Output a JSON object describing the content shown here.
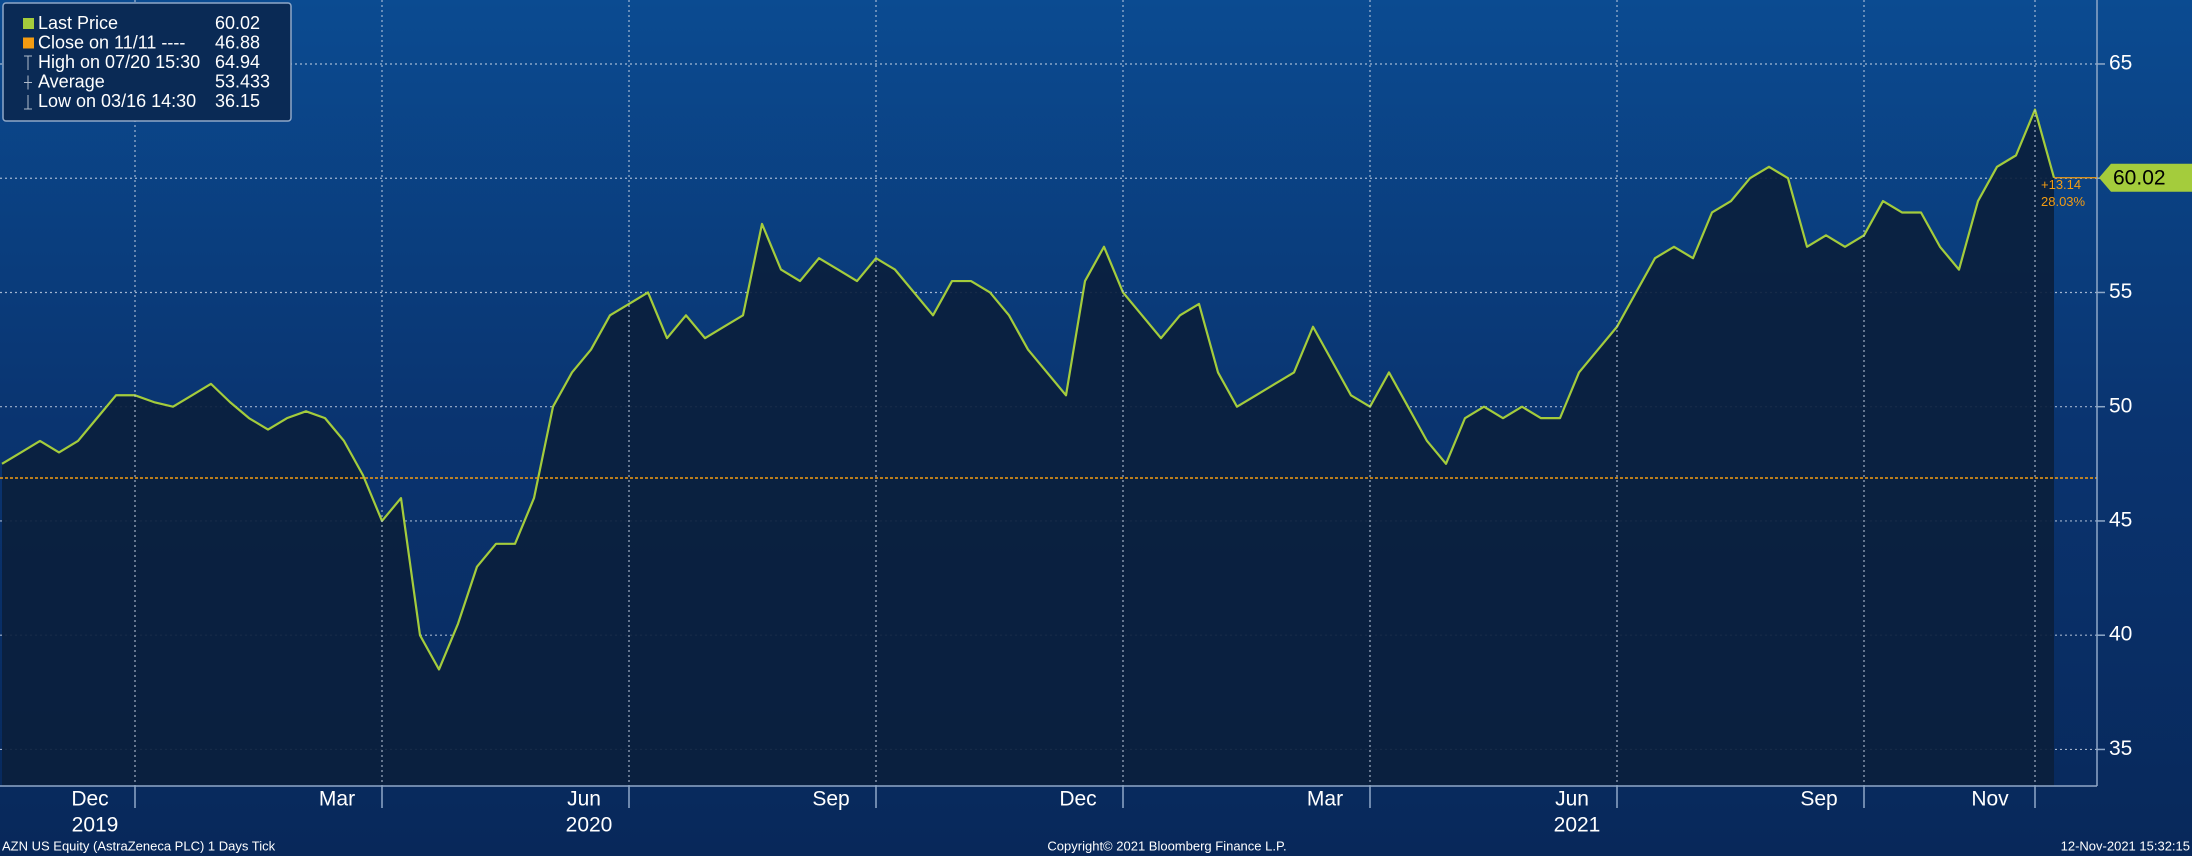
{
  "chart_data": {
    "type": "area",
    "categories": [
      null,
      null,
      null,
      null,
      null,
      null,
      null,
      "Dec",
      null,
      null,
      null,
      null,
      null,
      null,
      null,
      null,
      null,
      null,
      null,
      null,
      "Mar",
      null,
      null,
      null,
      null,
      null,
      null,
      null,
      null,
      null,
      null,
      null,
      null,
      "Jun",
      null,
      null,
      null,
      null,
      null,
      null,
      null,
      null,
      null,
      null,
      null,
      null,
      "Sep",
      null,
      null,
      null,
      null,
      null,
      null,
      null,
      null,
      null,
      null,
      null,
      null,
      "Dec",
      null,
      null,
      null,
      null,
      null,
      null,
      null,
      null,
      null,
      null,
      null,
      null,
      "Mar",
      null,
      null,
      null,
      null,
      null,
      null,
      null,
      null,
      null,
      null,
      null,
      null,
      "Jun",
      null,
      null,
      null,
      null,
      null,
      null,
      null,
      null,
      null,
      null,
      null,
      null,
      "Sep",
      null,
      null,
      null,
      null,
      null,
      null,
      null,
      null,
      "Nov",
      null
    ],
    "year_labels": [
      {
        "index": 7,
        "label": "2019"
      },
      {
        "index": 33,
        "label": "2020"
      },
      {
        "index": 85,
        "label": "2021"
      }
    ],
    "series": [
      {
        "name": "Last Price",
        "color": "#a4cc3c",
        "values": [
          47.5,
          48,
          48.5,
          48,
          48.5,
          49.5,
          50.5,
          50.5,
          50.2,
          50,
          50.5,
          51,
          50.2,
          49.5,
          49,
          49.5,
          49.8,
          49.5,
          48.5,
          47,
          45,
          46,
          40,
          38.5,
          40.5,
          43,
          44,
          44,
          46,
          50,
          51.5,
          52.5,
          54,
          54.5,
          55,
          53,
          54,
          53,
          53.5,
          54,
          58,
          56,
          55.5,
          56.5,
          56,
          55.5,
          56.5,
          56,
          55,
          54,
          55.5,
          55.5,
          55,
          54,
          52.5,
          51.5,
          50.5,
          55.5,
          57,
          55,
          54,
          53,
          54,
          54.5,
          51.5,
          50,
          50.5,
          51,
          51.5,
          53.5,
          52,
          50.5,
          50,
          51.5,
          50,
          48.5,
          47.5,
          49.5,
          50,
          49.5,
          50,
          49.5,
          49.5,
          51.5,
          52.5,
          53.5,
          55,
          56.5,
          57,
          56.5,
          58.5,
          59,
          60,
          60.5,
          60,
          57,
          57.5,
          57,
          57.5,
          59,
          58.5,
          58.5,
          57,
          56,
          59,
          60.5,
          61,
          63,
          60.02
        ]
      }
    ],
    "reference_line": {
      "name": "Close on 11/11 ----",
      "value": 46.88,
      "color": "#f39c12"
    },
    "stats": [
      {
        "name": "High on 07/20 15:30",
        "value": 64.94
      },
      {
        "name": "Average",
        "value": 53.433
      },
      {
        "name": "Low on 03/16 14:30",
        "value": 36.15
      }
    ],
    "change_labels": [
      "+13.14",
      "28.03%"
    ],
    "ylim": [
      33.4,
      67.8
    ],
    "yticks": [
      35,
      40,
      45,
      50,
      55,
      60,
      65
    ],
    "grid": true,
    "footer": {
      "left": "AZN US Equity (AstraZeneca PLC) 1 Days  Tick",
      "center": "Copyright© 2021 Bloomberg Finance L.P.",
      "right": "12-Nov-2021 15:32:15"
    }
  }
}
